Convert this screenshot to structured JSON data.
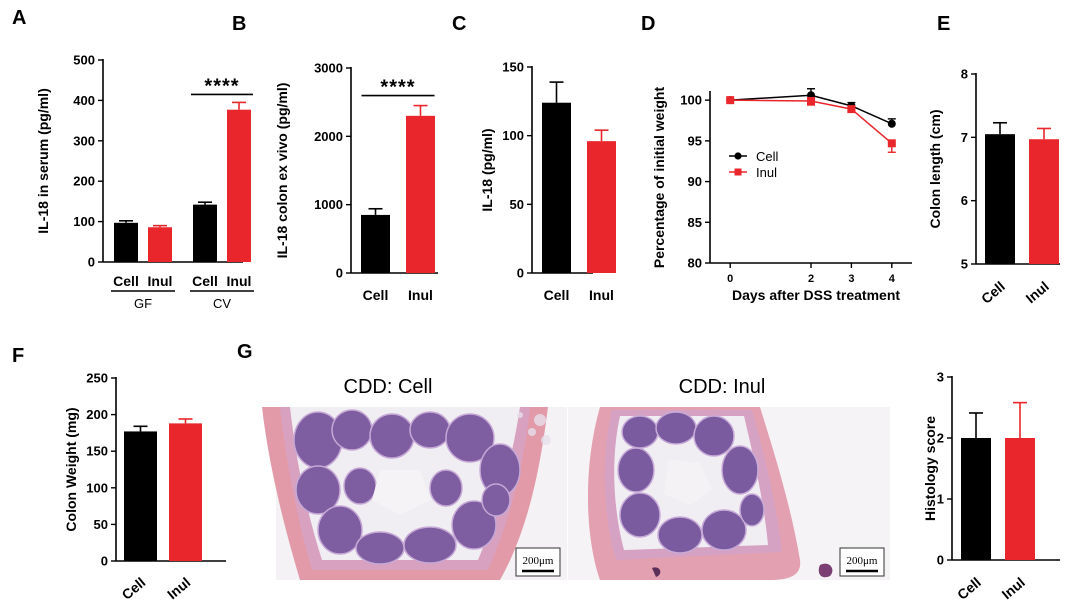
{
  "colors": {
    "cell": "#000000",
    "inul": "#e8262b",
    "axis": "#000000"
  },
  "chart_data": [
    {
      "id": "A",
      "panel_label": "A",
      "type": "bar",
      "ylabel": "IL-18 in serum (pg/ml)",
      "ylim": [
        0,
        500
      ],
      "yticks": [
        0,
        100,
        200,
        300,
        400,
        500
      ],
      "categories": [
        "Cell",
        "Inul",
        "Cell",
        "Inul"
      ],
      "groups": [
        {
          "label": "GF",
          "from": 0,
          "to": 1
        },
        {
          "label": "CV",
          "from": 2,
          "to": 3
        }
      ],
      "values": [
        97,
        86,
        142,
        377
      ],
      "errors": [
        5,
        4,
        6,
        18
      ],
      "colors": [
        "#000000",
        "#e8262b",
        "#000000",
        "#e8262b"
      ],
      "significance": [
        {
          "from": 2,
          "to": 3,
          "label": "****"
        }
      ]
    },
    {
      "id": "B",
      "panel_label": "B",
      "type": "bar",
      "ylabel": "IL-18 colon ex vivo (pg/ml)",
      "ylim": [
        0,
        3000
      ],
      "yticks": [
        0,
        1000,
        2000,
        3000
      ],
      "categories": [
        "Cell",
        "Inul"
      ],
      "values": [
        850,
        2300
      ],
      "errors": [
        90,
        150
      ],
      "colors": [
        "#000000",
        "#e8262b"
      ],
      "significance": [
        {
          "from": 0,
          "to": 1,
          "label": "****"
        }
      ]
    },
    {
      "id": "C",
      "panel_label": "C",
      "type": "bar",
      "ylabel": "IL-18 (pg/ml)",
      "ylim": [
        0,
        150
      ],
      "yticks": [
        0,
        50,
        100,
        150
      ],
      "categories": [
        "Cell",
        "Inul"
      ],
      "values": [
        124,
        96
      ],
      "errors": [
        15,
        8
      ],
      "colors": [
        "#000000",
        "#e8262b"
      ]
    },
    {
      "id": "D",
      "panel_label": "D",
      "type": "line",
      "ylabel": "Percentage of initial weight",
      "xlabel": "Days after DSS treatment",
      "ylim": [
        80,
        101
      ],
      "yticks": [
        80,
        85,
        90,
        95,
        100
      ],
      "xticks": [
        0,
        2,
        3,
        4
      ],
      "series": [
        {
          "name": "Cell",
          "color": "#000000",
          "marker": "circle",
          "x": [
            0,
            2,
            3,
            4
          ],
          "y": [
            100,
            100.6,
            99.3,
            97.1
          ],
          "errors": [
            0,
            0.8,
            0.4,
            0.6
          ]
        },
        {
          "name": "Inul",
          "color": "#e8262b",
          "marker": "square",
          "x": [
            0,
            2,
            3,
            4
          ],
          "y": [
            100,
            99.9,
            98.9,
            94.7
          ],
          "errors": [
            0,
            0.5,
            0.3,
            1.1
          ]
        }
      ],
      "legend": "center-left"
    },
    {
      "id": "E",
      "panel_label": "E",
      "type": "bar",
      "ylabel": "Colon length (cm)",
      "ylim": [
        5,
        8
      ],
      "yticks": [
        5,
        6,
        7,
        8
      ],
      "categories": [
        "Cell",
        "Inul"
      ],
      "values": [
        7.05,
        6.97
      ],
      "errors": [
        0.18,
        0.17
      ],
      "colors": [
        "#000000",
        "#e8262b"
      ],
      "rotated_labels": true
    },
    {
      "id": "F",
      "panel_label": "F",
      "type": "bar",
      "ylabel": "Colon Weight (mg)",
      "ylim": [
        0,
        250
      ],
      "yticks": [
        0,
        50,
        100,
        150,
        200,
        250
      ],
      "categories": [
        "Cell",
        "Inul"
      ],
      "values": [
        177,
        188
      ],
      "errors": [
        7,
        6
      ],
      "colors": [
        "#000000",
        "#e8262b"
      ],
      "rotated_labels": true
    },
    {
      "id": "G",
      "panel_label": "",
      "type": "bar",
      "ylabel": "Histology score",
      "ylim": [
        0,
        3
      ],
      "yticks": [
        0,
        1,
        2,
        3
      ],
      "categories": [
        "Cell",
        "Inul"
      ],
      "values": [
        2.0,
        2.0
      ],
      "errors": [
        0.41,
        0.58
      ],
      "colors": [
        "#000000",
        "#e8262b"
      ],
      "rotated_labels": true
    }
  ],
  "histology": {
    "panel_label": "G",
    "images": [
      {
        "title": "CDD: Cell",
        "scale_bar": "200μm"
      },
      {
        "title": "CDD: Inul",
        "scale_bar": "200μm"
      }
    ]
  }
}
